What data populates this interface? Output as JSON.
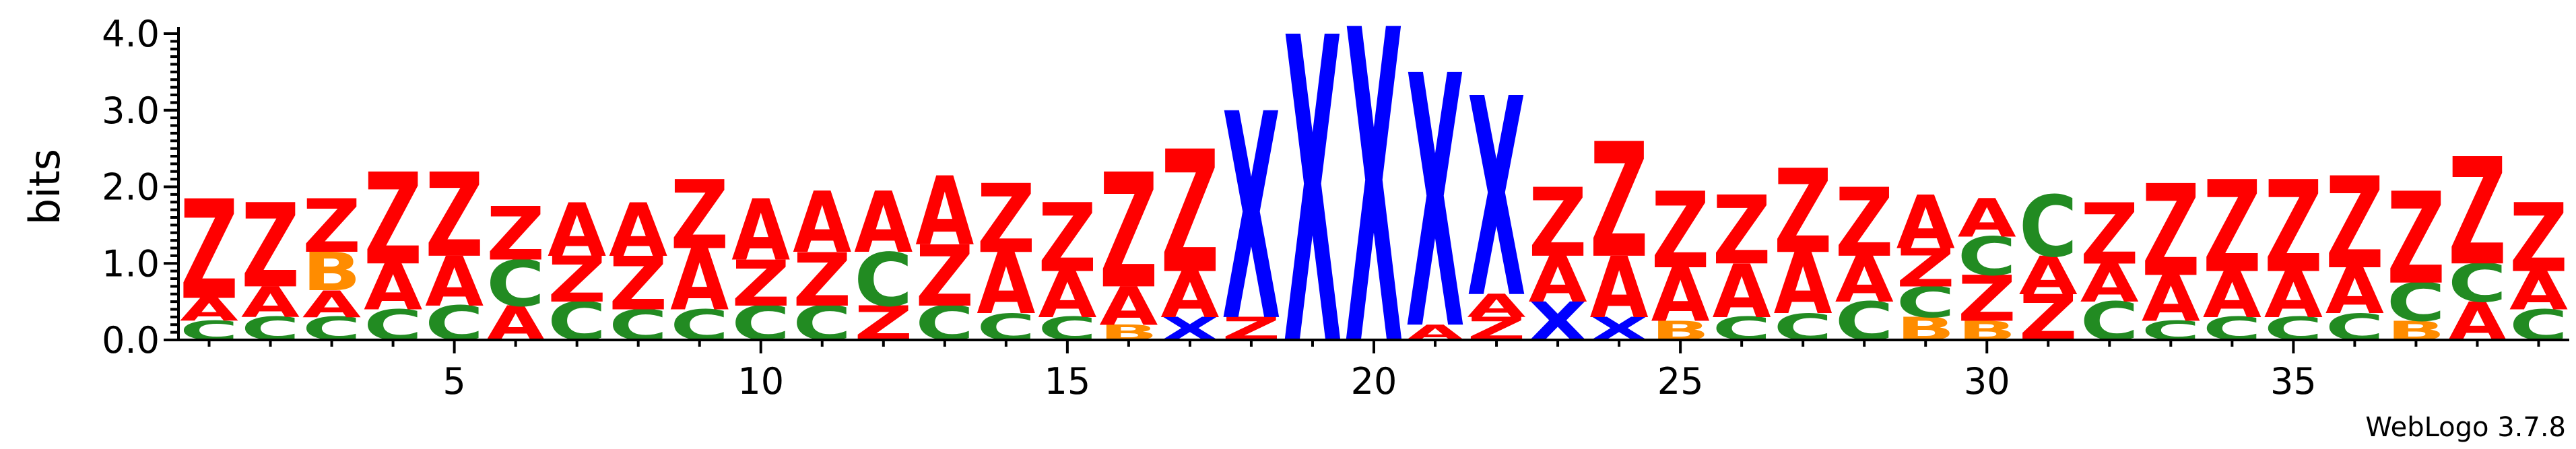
{
  "chart_data": {
    "type": "sequence_logo",
    "ylabel": "bits",
    "ylim": [
      0,
      4.0
    ],
    "yticks": [
      "0.0",
      "1.0",
      "2.0",
      "3.0",
      "4.0"
    ],
    "xticks": [
      5,
      10,
      15,
      20,
      25,
      30,
      35
    ],
    "num_positions": 39,
    "credit": "WebLogo 3.7.8",
    "colors": {
      "Z": "#ff0000",
      "A": "#ff0000",
      "C": "#228b22",
      "B": "#ff8c00",
      "Q": "#ff0000",
      "X": "#0000ff"
    },
    "positions": [
      {
        "pos": 1,
        "letters": [
          {
            "l": "C",
            "h": 0.25
          },
          {
            "l": "A",
            "h": 0.3
          },
          {
            "l": "Z",
            "h": 1.3
          }
        ]
      },
      {
        "pos": 2,
        "letters": [
          {
            "l": "C",
            "h": 0.3
          },
          {
            "l": "A",
            "h": 0.4
          },
          {
            "l": "Z",
            "h": 1.1
          }
        ]
      },
      {
        "pos": 3,
        "letters": [
          {
            "l": "C",
            "h": 0.3
          },
          {
            "l": "A",
            "h": 0.35
          },
          {
            "l": "B",
            "h": 0.5
          },
          {
            "l": "Z",
            "h": 0.7
          }
        ]
      },
      {
        "pos": 4,
        "letters": [
          {
            "l": "C",
            "h": 0.4
          },
          {
            "l": "A",
            "h": 0.6
          },
          {
            "l": "Z",
            "h": 1.2
          }
        ]
      },
      {
        "pos": 5,
        "letters": [
          {
            "l": "C",
            "h": 0.45
          },
          {
            "l": "A",
            "h": 0.65
          },
          {
            "l": "Z",
            "h": 1.1
          }
        ]
      },
      {
        "pos": 6,
        "letters": [
          {
            "l": "A",
            "h": 0.45
          },
          {
            "l": "C",
            "h": 0.6
          },
          {
            "l": "Z",
            "h": 0.7
          }
        ]
      },
      {
        "pos": 7,
        "letters": [
          {
            "l": "C",
            "h": 0.5
          },
          {
            "l": "Z",
            "h": 0.6
          },
          {
            "l": "A",
            "h": 0.7
          }
        ]
      },
      {
        "pos": 8,
        "letters": [
          {
            "l": "C",
            "h": 0.4
          },
          {
            "l": "Z",
            "h": 0.7
          },
          {
            "l": "A",
            "h": 0.7
          }
        ]
      },
      {
        "pos": 9,
        "letters": [
          {
            "l": "C",
            "h": 0.4
          },
          {
            "l": "A",
            "h": 0.8
          },
          {
            "l": "Z",
            "h": 0.9
          }
        ]
      },
      {
        "pos": 10,
        "letters": [
          {
            "l": "C",
            "h": 0.45
          },
          {
            "l": "Z",
            "h": 0.6
          },
          {
            "l": "A",
            "h": 0.8
          }
        ]
      },
      {
        "pos": 11,
        "letters": [
          {
            "l": "C",
            "h": 0.45
          },
          {
            "l": "Z",
            "h": 0.7
          },
          {
            "l": "A",
            "h": 0.8
          }
        ]
      },
      {
        "pos": 12,
        "letters": [
          {
            "l": "Z",
            "h": 0.45
          },
          {
            "l": "C",
            "h": 0.7
          },
          {
            "l": "A",
            "h": 0.8
          }
        ]
      },
      {
        "pos": 13,
        "letters": [
          {
            "l": "C",
            "h": 0.45
          },
          {
            "l": "Z",
            "h": 0.8
          },
          {
            "l": "A",
            "h": 0.9
          }
        ]
      },
      {
        "pos": 14,
        "letters": [
          {
            "l": "C",
            "h": 0.35
          },
          {
            "l": "A",
            "h": 0.8
          },
          {
            "l": "Z",
            "h": 0.9
          }
        ]
      },
      {
        "pos": 15,
        "letters": [
          {
            "l": "C",
            "h": 0.3
          },
          {
            "l": "A",
            "h": 0.6
          },
          {
            "l": "Z",
            "h": 0.9
          }
        ]
      },
      {
        "pos": 16,
        "letters": [
          {
            "l": "B",
            "h": 0.2
          },
          {
            "l": "A",
            "h": 0.5
          },
          {
            "l": "Z",
            "h": 1.5
          }
        ]
      },
      {
        "pos": 17,
        "letters": [
          {
            "l": "X",
            "h": 0.3
          },
          {
            "l": "A",
            "h": 0.6
          },
          {
            "l": "Z",
            "h": 1.6
          }
        ]
      },
      {
        "pos": 18,
        "letters": [
          {
            "l": "Z",
            "h": 0.3
          },
          {
            "l": "X",
            "h": 2.7
          }
        ]
      },
      {
        "pos": 19,
        "letters": [
          {
            "l": "X",
            "h": 4.0
          }
        ]
      },
      {
        "pos": 20,
        "letters": [
          {
            "l": "X",
            "h": 4.1
          }
        ]
      },
      {
        "pos": 21,
        "letters": [
          {
            "l": "A",
            "h": 0.2
          },
          {
            "l": "X",
            "h": 3.3
          }
        ]
      },
      {
        "pos": 22,
        "letters": [
          {
            "l": "Z",
            "h": 0.3
          },
          {
            "l": "A",
            "h": 0.3
          },
          {
            "l": "X",
            "h": 2.6
          }
        ]
      },
      {
        "pos": 23,
        "letters": [
          {
            "l": "X",
            "h": 0.5
          },
          {
            "l": "A",
            "h": 0.6
          },
          {
            "l": "Z",
            "h": 0.9
          }
        ]
      },
      {
        "pos": 24,
        "letters": [
          {
            "l": "X",
            "h": 0.3
          },
          {
            "l": "A",
            "h": 0.8
          },
          {
            "l": "Z",
            "h": 1.5
          }
        ]
      },
      {
        "pos": 25,
        "letters": [
          {
            "l": "B",
            "h": 0.25
          },
          {
            "l": "A",
            "h": 0.7
          },
          {
            "l": "Z",
            "h": 1.0
          }
        ]
      },
      {
        "pos": 26,
        "letters": [
          {
            "l": "C",
            "h": 0.3
          },
          {
            "l": "A",
            "h": 0.7
          },
          {
            "l": "Z",
            "h": 0.9
          }
        ]
      },
      {
        "pos": 27,
        "letters": [
          {
            "l": "C",
            "h": 0.35
          },
          {
            "l": "A",
            "h": 0.8
          },
          {
            "l": "Z",
            "h": 1.1
          }
        ]
      },
      {
        "pos": 28,
        "letters": [
          {
            "l": "C",
            "h": 0.5
          },
          {
            "l": "A",
            "h": 0.6
          },
          {
            "l": "Z",
            "h": 0.9
          }
        ]
      },
      {
        "pos": 29,
        "letters": [
          {
            "l": "B",
            "h": 0.3
          },
          {
            "l": "C",
            "h": 0.4
          },
          {
            "l": "Z",
            "h": 0.5
          },
          {
            "l": "A",
            "h": 0.7
          }
        ]
      },
      {
        "pos": 30,
        "letters": [
          {
            "l": "B",
            "h": 0.25
          },
          {
            "l": "Z",
            "h": 0.6
          },
          {
            "l": "C",
            "h": 0.5
          },
          {
            "l": "A",
            "h": 0.5
          }
        ]
      },
      {
        "pos": 31,
        "letters": [
          {
            "l": "Z",
            "h": 0.6
          },
          {
            "l": "A",
            "h": 0.5
          },
          {
            "l": "C",
            "h": 0.8
          }
        ]
      },
      {
        "pos": 32,
        "letters": [
          {
            "l": "C",
            "h": 0.5
          },
          {
            "l": "A",
            "h": 0.5
          },
          {
            "l": "Z",
            "h": 0.8
          }
        ]
      },
      {
        "pos": 33,
        "letters": [
          {
            "l": "C",
            "h": 0.25
          },
          {
            "l": "A",
            "h": 0.6
          },
          {
            "l": "Z",
            "h": 1.2
          }
        ]
      },
      {
        "pos": 34,
        "letters": [
          {
            "l": "C",
            "h": 0.3
          },
          {
            "l": "A",
            "h": 0.6
          },
          {
            "l": "Z",
            "h": 1.2
          }
        ]
      },
      {
        "pos": 35,
        "letters": [
          {
            "l": "C",
            "h": 0.3
          },
          {
            "l": "A",
            "h": 0.6
          },
          {
            "l": "Z",
            "h": 1.2
          }
        ]
      },
      {
        "pos": 36,
        "letters": [
          {
            "l": "C",
            "h": 0.35
          },
          {
            "l": "A",
            "h": 0.6
          },
          {
            "l": "Z",
            "h": 1.2
          }
        ]
      },
      {
        "pos": 37,
        "letters": [
          {
            "l": "B",
            "h": 0.25
          },
          {
            "l": "C",
            "h": 0.5
          },
          {
            "l": "Z",
            "h": 1.2
          }
        ]
      },
      {
        "pos": 38,
        "letters": [
          {
            "l": "A",
            "h": 0.5
          },
          {
            "l": "C",
            "h": 0.5
          },
          {
            "l": "Z",
            "h": 1.4
          }
        ]
      },
      {
        "pos": 39,
        "letters": [
          {
            "l": "C",
            "h": 0.4
          },
          {
            "l": "A",
            "h": 0.5
          },
          {
            "l": "Z",
            "h": 0.9
          }
        ]
      }
    ]
  }
}
